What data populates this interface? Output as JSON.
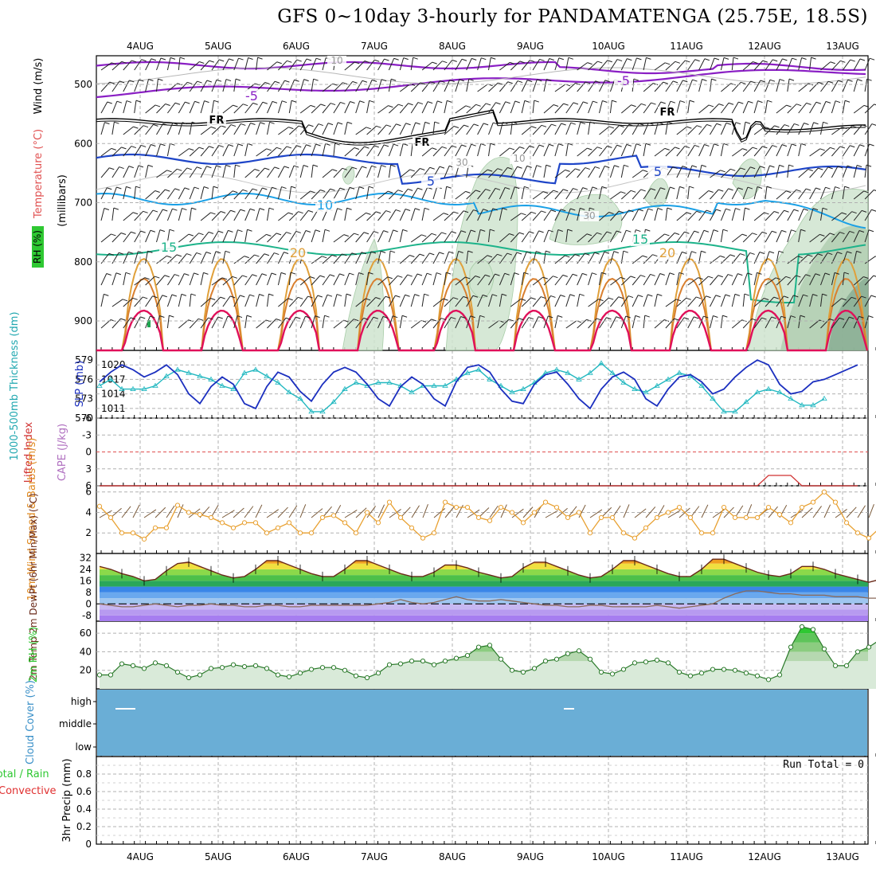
{
  "title": "GFS 0~10day 3-hourly for PANDAMATENGA (25.75E, 18.5S)",
  "dates": [
    "4AUG",
    "5AUG",
    "6AUG",
    "7AUG",
    "8AUG",
    "9AUG",
    "10AUG",
    "11AUG",
    "12AUG",
    "13AUG"
  ],
  "colors": {
    "grid": "#b0b0b0",
    "temp_purple": "#8a1fc4",
    "temp_blue": "#1e45c8",
    "temp_cyan": "#1aa0e6",
    "temp_green": "#1db38a",
    "temp_orange": "#e0a03a",
    "temp_red": "#e0105a",
    "rh_green": "#cfe5cf",
    "slp_line": "#1b2fbf",
    "thick_line": "#22b8c0",
    "wind_speed": "#e8a030",
    "cloud_fill": "#6aaed6"
  },
  "chart_data": [
    {
      "type": "contour",
      "name": "upper-air",
      "ylabel_segments": [
        "Wind (m/s)",
        "Temperature (°C)",
        "RH (%)"
      ],
      "ylabel_units": "(millibars)",
      "yticks": [
        500,
        600,
        700,
        800,
        900
      ],
      "ylim": [
        1000,
        450
      ],
      "contour_labels": [
        "-5",
        "-5",
        "FR",
        "FR",
        "FR",
        "5",
        "5",
        "5",
        "10",
        "15",
        "15",
        "20",
        "20",
        "10",
        "10",
        "30",
        "30",
        "10"
      ],
      "isotherms_c": [
        -5,
        0,
        5,
        10,
        15,
        20,
        25,
        30
      ],
      "freezing_level_mb": [
        560,
        565,
        570,
        568,
        575,
        578,
        565,
        545,
        560,
        555,
        570,
        575
      ]
    },
    {
      "type": "line",
      "name": "slp-thickness",
      "ylabel_left": "1000-500mb Thickness (dm)",
      "ylabel_right": "SLP (mb)",
      "yticks_left": [
        570,
        573,
        576,
        579
      ],
      "yticks_right": [
        1011,
        1014,
        1017,
        1020
      ],
      "series": [
        {
          "name": "SLP (mb)",
          "values": [
            1016.5,
            1018.5,
            1020,
            1019,
            1017.5,
            1018.5,
            1020,
            1018,
            1014,
            1012,
            1015.5,
            1017.5,
            1016,
            1012,
            1011,
            1015.5,
            1018.5,
            1017.5,
            1014.5,
            1012.5,
            1016,
            1018.5,
            1019.5,
            1018.5,
            1016,
            1013,
            1011.5,
            1015.5,
            1017.5,
            1016,
            1013,
            1011.5,
            1016.5,
            1019.5,
            1020,
            1018.5,
            1015,
            1012.5,
            1012,
            1016,
            1018,
            1018.5,
            1016,
            1013,
            1011,
            1015,
            1017.5,
            1018.5,
            1017,
            1013,
            1011.5,
            1015,
            1017.5,
            1018,
            1016.5,
            1014,
            1015,
            1017.5,
            1019.5,
            1021,
            1020,
            1016,
            1014,
            1014.5,
            1016.5,
            1017,
            1018,
            1019,
            1020
          ]
        },
        {
          "name": "Thickness (dm)",
          "values": [
            575,
            576,
            574.5,
            574.5,
            574.5,
            575,
            576.5,
            577.5,
            577,
            576.5,
            576,
            575,
            574.5,
            577,
            577.5,
            576.5,
            575.5,
            574,
            573,
            571,
            571,
            572.5,
            574.5,
            575.5,
            575,
            575.5,
            575.5,
            575,
            574,
            575,
            575,
            575,
            576,
            577,
            577.5,
            576,
            575,
            574,
            574.5,
            575.5,
            577,
            577.5,
            577,
            576,
            577,
            578.5,
            577,
            575.5,
            574.5,
            574,
            575,
            576,
            577,
            576.5,
            575,
            573,
            571,
            571,
            572.5,
            574,
            574.5,
            574,
            573,
            572,
            572,
            573
          ]
        }
      ]
    },
    {
      "type": "line",
      "name": "stability",
      "ylabel_left": "Lifted Index",
      "ylabel_right": "CAPE (J/kg)",
      "yticks": [
        -6,
        -3,
        0,
        3,
        6
      ],
      "series": [
        {
          "name": "CAPE (J/kg)",
          "values": [
            0,
            0,
            0,
            0,
            0,
            0,
            0,
            0,
            0,
            0,
            0,
            0,
            0,
            0,
            0,
            0,
            0,
            0,
            0,
            0,
            0,
            0,
            0,
            0,
            0,
            0,
            0,
            0,
            0,
            0,
            0,
            0,
            0,
            0,
            0,
            0,
            0,
            0,
            0,
            0,
            0,
            0,
            0,
            0,
            0,
            0,
            0,
            0,
            0,
            0,
            0,
            0,
            0,
            0,
            0,
            0,
            0,
            0,
            0,
            0,
            5,
            5,
            5,
            0,
            0,
            0,
            0,
            0,
            0
          ]
        }
      ]
    },
    {
      "type": "line",
      "name": "10m-wind",
      "ylabel": "10m Wind Speed & Barbs (m/s)",
      "yticks": [
        2,
        4,
        6
      ],
      "series": [
        {
          "name": "Speed (m/s)",
          "values": [
            4.6,
            3.5,
            2,
            2,
            1.4,
            2.5,
            2.5,
            4.7,
            4,
            3.8,
            3.5,
            3,
            2.5,
            3,
            3,
            2,
            2.5,
            3,
            2,
            2,
            3.5,
            3.7,
            3,
            2,
            4,
            3,
            5,
            3.5,
            2.5,
            1.5,
            2,
            5,
            4.5,
            4.5,
            3.5,
            3.2,
            4.5,
            4,
            3,
            4,
            5,
            4.5,
            3.5,
            4,
            2,
            3.5,
            3.5,
            2,
            1.5,
            2.5,
            3.5,
            4,
            4.5,
            3.5,
            2,
            2,
            4.5,
            3.5,
            3.5,
            3.5,
            4.5,
            3.8,
            3,
            4.5,
            5,
            6,
            5,
            3,
            2,
            1.5,
            2.5,
            3.5
          ]
        }
      ]
    },
    {
      "type": "area",
      "name": "2m-temp",
      "ylabel": "2m Temp 2m DewPt (6hr Min/Max) (°C)",
      "yticks": [
        -8,
        0,
        8,
        16,
        24,
        32
      ],
      "series": [
        {
          "name": "2m Temp",
          "values": [
            26,
            24,
            21,
            19,
            16,
            17,
            23,
            28,
            29,
            26,
            23,
            20,
            18,
            19,
            24,
            30,
            30,
            27,
            24,
            21,
            19,
            19,
            24,
            30,
            30,
            27,
            24,
            21,
            19,
            19,
            22,
            27,
            27,
            25,
            22,
            20,
            18,
            19,
            25,
            29,
            29,
            26,
            23,
            20,
            18,
            19,
            24,
            30,
            30,
            27,
            24,
            21,
            19,
            19,
            24,
            31,
            31,
            28,
            25,
            22,
            20,
            19,
            21,
            26,
            26,
            24,
            21,
            19,
            17,
            15,
            17
          ]
        },
        {
          "name": "2m DewPt",
          "values": [
            0,
            -1,
            -2,
            -2,
            -1,
            0,
            -1,
            -2,
            -1,
            -1,
            0,
            -1,
            -1,
            -2,
            -2,
            -1,
            -1,
            -2,
            -2,
            -1,
            -1,
            -1,
            -1,
            -1,
            -1,
            0,
            1,
            3,
            1,
            0,
            1,
            3,
            5,
            3,
            2,
            2,
            3,
            2,
            1,
            0,
            -1,
            -1,
            -2,
            -2,
            -1,
            -1,
            -2,
            -2,
            -2,
            -2,
            -1,
            -2,
            -3,
            -2,
            -1,
            0,
            4,
            7,
            9,
            9,
            8,
            7,
            7,
            6,
            6,
            6,
            5,
            5,
            5,
            4,
            4
          ]
        }
      ]
    },
    {
      "type": "area",
      "name": "2m-rh",
      "ylabel": "2m RH (%)",
      "yticks": [
        20,
        40,
        60
      ],
      "series": [
        {
          "name": "2m RH (%)",
          "values": [
            15,
            15,
            27,
            25,
            22,
            28,
            25,
            18,
            12,
            15,
            22,
            23,
            26,
            24,
            25,
            22,
            15,
            13,
            17,
            21,
            23,
            23,
            20,
            14,
            12,
            17,
            26,
            27,
            30,
            30,
            26,
            30,
            33,
            36,
            45,
            47,
            32,
            20,
            18,
            22,
            30,
            32,
            38,
            41,
            32,
            18,
            16,
            21,
            28,
            29,
            31,
            28,
            18,
            14,
            17,
            21,
            21,
            20,
            17,
            14,
            10,
            15,
            45,
            67,
            64,
            43,
            25,
            25,
            40,
            45,
            53,
            57,
            50
          ]
        }
      ]
    },
    {
      "type": "area",
      "name": "cloud-cover",
      "ylabel": "Cloud Cover (%)",
      "levels": [
        "high",
        "middle",
        "low"
      ]
    },
    {
      "type": "bar",
      "name": "precip",
      "ylabel_left": "Total / Rain Convective",
      "ylabel": "3hr Precip (mm)",
      "yticks": [
        "0",
        "0.2",
        "0.4",
        "0.6",
        "0.8"
      ],
      "ylim": [
        0,
        1
      ],
      "annotation": "Run Total = 0",
      "values": []
    }
  ]
}
